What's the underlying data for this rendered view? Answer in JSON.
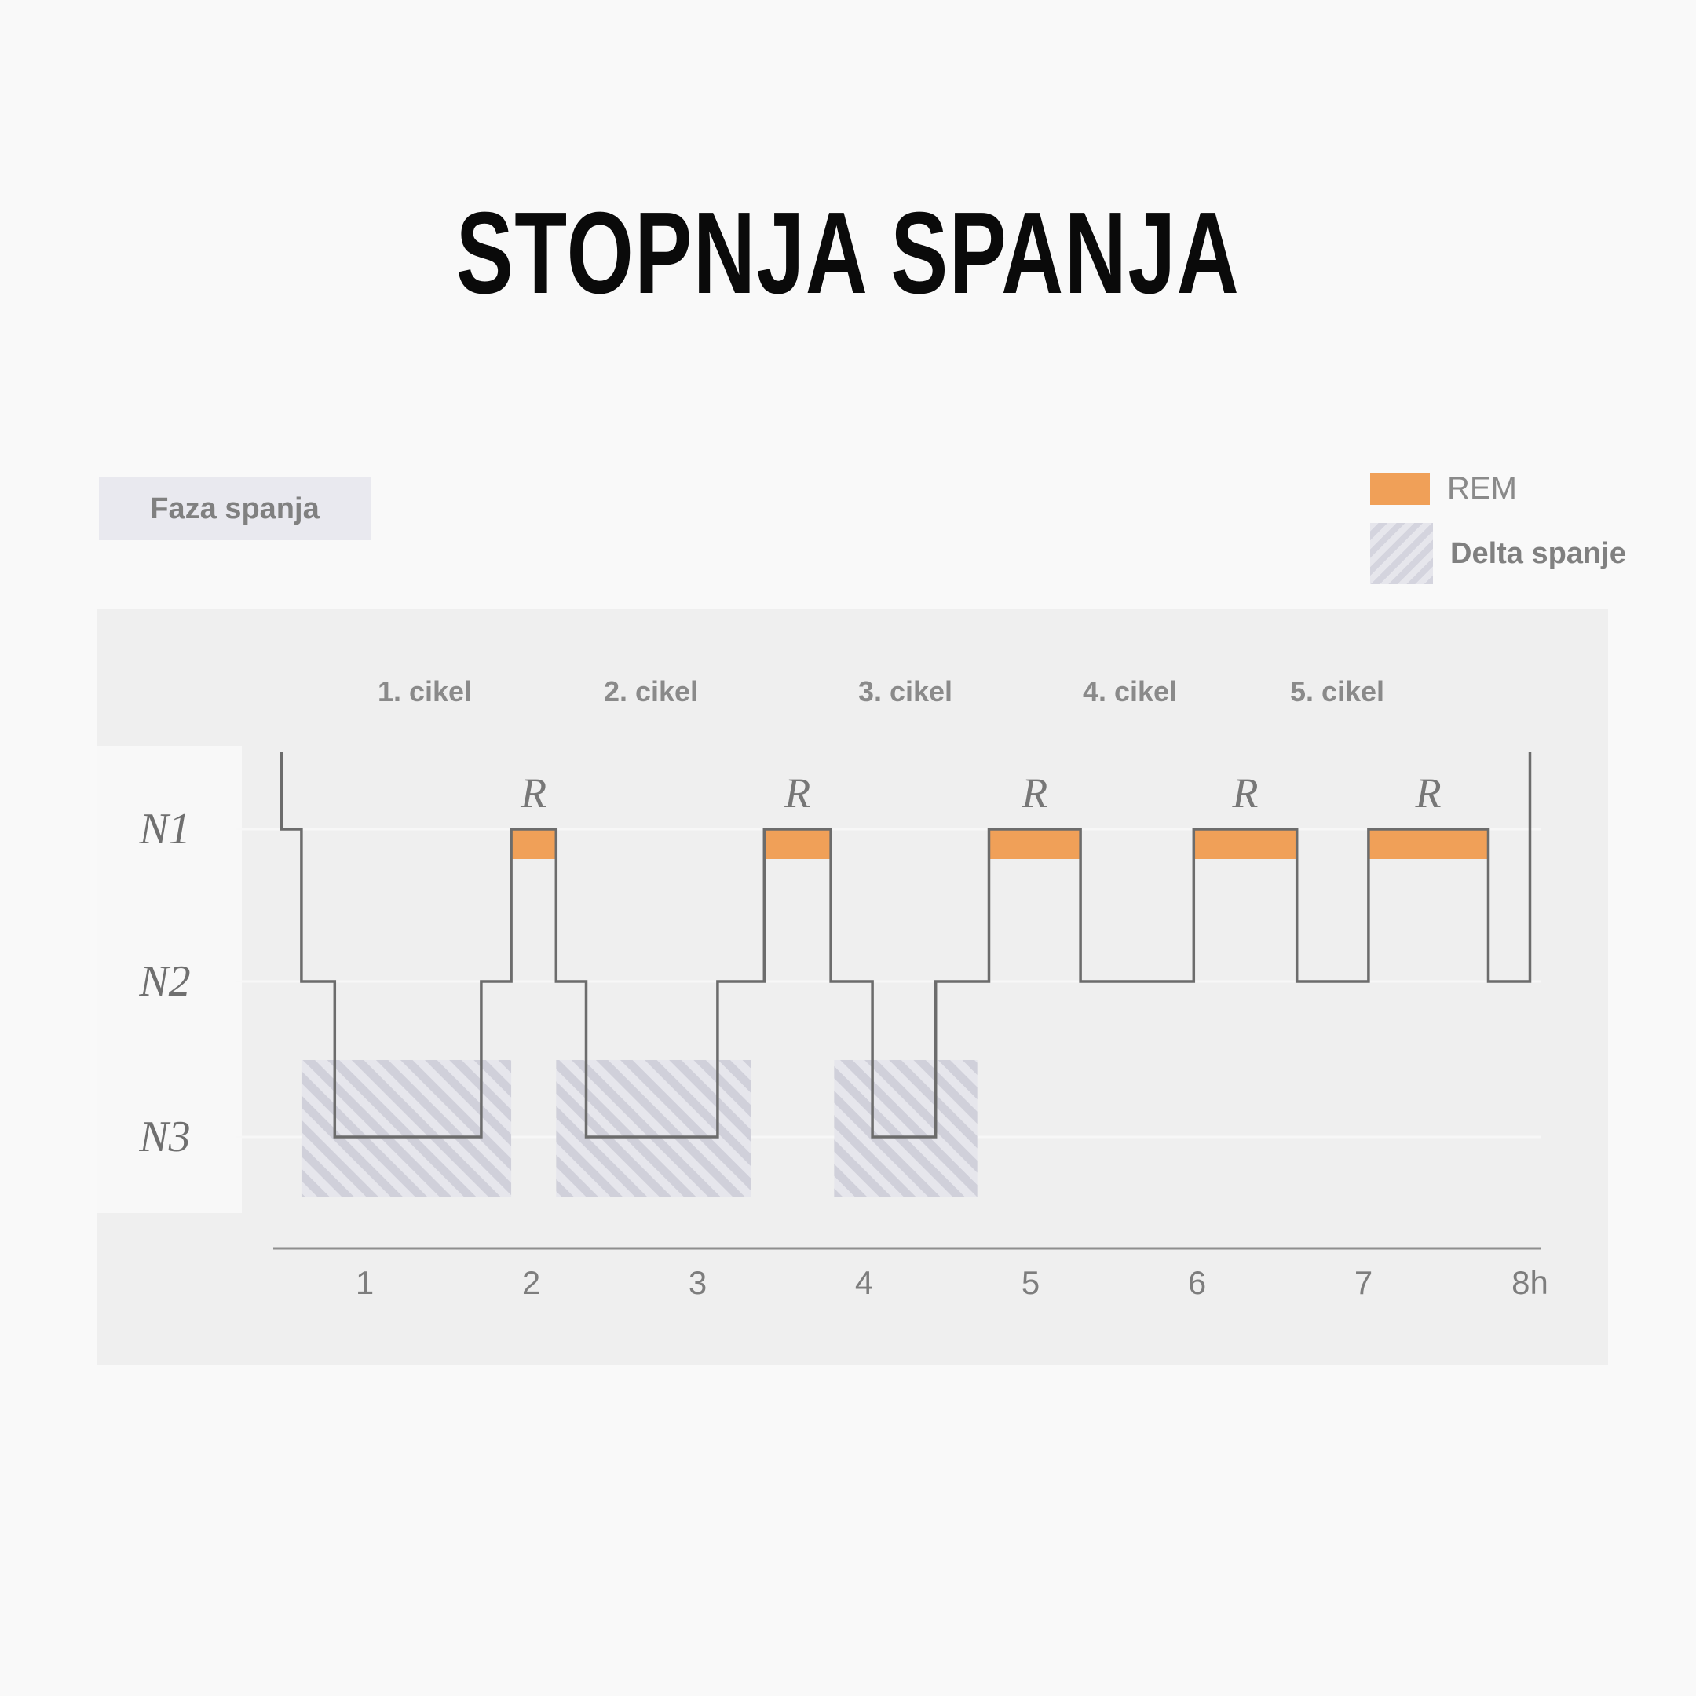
{
  "title": "STOPNJA SPANJA",
  "phase_label": "Faza spanja",
  "legend": [
    {
      "label": "REM",
      "color": "#f0a058"
    },
    {
      "label": "Delta spanje",
      "pattern": "hatched"
    }
  ],
  "chart_data": {
    "type": "line",
    "title": "STOPNJA SPANJA",
    "xlabel": "",
    "ylabel": "Faza spanja",
    "x_ticks": [
      "1",
      "2",
      "3",
      "4",
      "5",
      "6",
      "7",
      "8h"
    ],
    "y_categories": [
      "N1",
      "N2",
      "N3"
    ],
    "cycles": [
      "1. cikel",
      "2. cikel",
      "3. cikel",
      "4. cikel",
      "5. cikel"
    ],
    "rem_marker": "R",
    "xlim": [
      0.45,
      8.1
    ],
    "hypnogram": [
      {
        "t": 0.5,
        "stage": "wake"
      },
      {
        "t": 0.5,
        "stage": "N1"
      },
      {
        "t": 0.62,
        "stage": "N1"
      },
      {
        "t": 0.62,
        "stage": "N2"
      },
      {
        "t": 0.82,
        "stage": "N2"
      },
      {
        "t": 0.82,
        "stage": "N3"
      },
      {
        "t": 1.7,
        "stage": "N3"
      },
      {
        "t": 1.7,
        "stage": "N2"
      },
      {
        "t": 1.88,
        "stage": "N2"
      },
      {
        "t": 1.88,
        "stage": "REM"
      },
      {
        "t": 2.15,
        "stage": "REM"
      },
      {
        "t": 2.15,
        "stage": "N2"
      },
      {
        "t": 2.33,
        "stage": "N2"
      },
      {
        "t": 2.33,
        "stage": "N3"
      },
      {
        "t": 3.12,
        "stage": "N3"
      },
      {
        "t": 3.12,
        "stage": "N2"
      },
      {
        "t": 3.4,
        "stage": "N2"
      },
      {
        "t": 3.4,
        "stage": "REM"
      },
      {
        "t": 3.8,
        "stage": "REM"
      },
      {
        "t": 3.8,
        "stage": "N2"
      },
      {
        "t": 4.05,
        "stage": "N2"
      },
      {
        "t": 4.05,
        "stage": "N3"
      },
      {
        "t": 4.43,
        "stage": "N3"
      },
      {
        "t": 4.43,
        "stage": "N2"
      },
      {
        "t": 4.75,
        "stage": "N2"
      },
      {
        "t": 4.75,
        "stage": "REM"
      },
      {
        "t": 5.3,
        "stage": "REM"
      },
      {
        "t": 5.3,
        "stage": "N2"
      },
      {
        "t": 5.98,
        "stage": "N2"
      },
      {
        "t": 5.98,
        "stage": "REM"
      },
      {
        "t": 6.6,
        "stage": "REM"
      },
      {
        "t": 6.6,
        "stage": "N2"
      },
      {
        "t": 7.03,
        "stage": "N2"
      },
      {
        "t": 7.03,
        "stage": "REM"
      },
      {
        "t": 7.75,
        "stage": "REM"
      },
      {
        "t": 7.75,
        "stage": "N2"
      },
      {
        "t": 8.0,
        "stage": "N2"
      },
      {
        "t": 8.0,
        "stage": "wake"
      }
    ],
    "rem_periods": [
      [
        1.88,
        2.15
      ],
      [
        3.4,
        3.8
      ],
      [
        4.75,
        5.3
      ],
      [
        5.98,
        6.6
      ],
      [
        7.03,
        7.75
      ]
    ],
    "delta_periods": [
      [
        0.62,
        1.88
      ],
      [
        2.15,
        3.32
      ],
      [
        3.82,
        4.68
      ]
    ],
    "grid": true,
    "legend_position": "top-right"
  }
}
